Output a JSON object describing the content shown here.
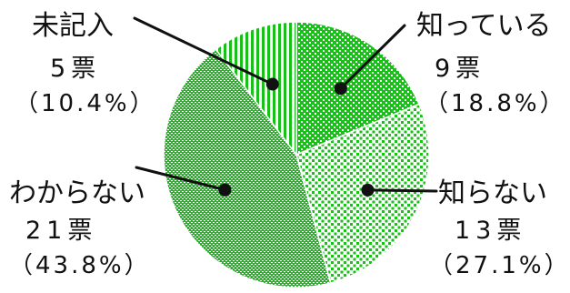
{
  "chart_data": {
    "type": "pie",
    "start": "top",
    "direction": "clockwise",
    "slices": [
      {
        "name": "知っている",
        "votes": "9票",
        "pct": "（18.8%）",
        "value": 18.8,
        "color": "#19c019",
        "pattern": "dots-light"
      },
      {
        "name": "知らない",
        "votes": "13票",
        "pct": "（27.1%）",
        "value": 27.1,
        "color": "#19c019",
        "pattern": "dots-sparse"
      },
      {
        "name": "わからない",
        "votes": "21票",
        "pct": "（43.8%）",
        "value": 43.8,
        "color": "#19c019",
        "pattern": "hatch-horizontal"
      },
      {
        "name": "未記入",
        "votes": "5票",
        "pct": "（10.4%）",
        "value": 10.4,
        "color": "#19c019",
        "pattern": "stripes-vertical"
      }
    ]
  }
}
